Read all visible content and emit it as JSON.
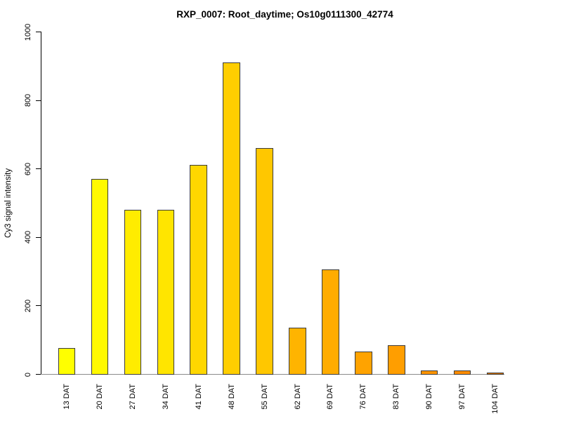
{
  "chart_data": {
    "type": "bar",
    "title": "RXP_0007: Root_daytime; Os10g0111300_42774",
    "ylabel": "Cy3 signal intensity",
    "xlabel": "",
    "ylim": [
      0,
      1000
    ],
    "yticks": [
      0,
      200,
      400,
      600,
      800,
      1000
    ],
    "grid": false,
    "legend": null,
    "categories": [
      "13 DAT",
      "20 DAT",
      "27 DAT",
      "34 DAT",
      "41 DAT",
      "48 DAT",
      "55 DAT",
      "62 DAT",
      "69 DAT",
      "76 DAT",
      "83 DAT",
      "90 DAT",
      "97 DAT",
      "104 DAT"
    ],
    "values": [
      75,
      570,
      480,
      480,
      610,
      910,
      660,
      135,
      305,
      65,
      85,
      10,
      10,
      5
    ],
    "bar_colors": [
      "#FFFF00",
      "#FFF900",
      "#FFEC00",
      "#FFE500",
      "#FFD700",
      "#FFCE00",
      "#FFC700",
      "#FFB400",
      "#FFAC00",
      "#FFA300",
      "#FF9E00",
      "#FF9400",
      "#FF8C00",
      "#DC7000"
    ],
    "bar_border_color": "#3b3b3b",
    "axis_color": "#000000",
    "baseline_color": "#8a8a8a",
    "background_color": "#ffffff"
  }
}
